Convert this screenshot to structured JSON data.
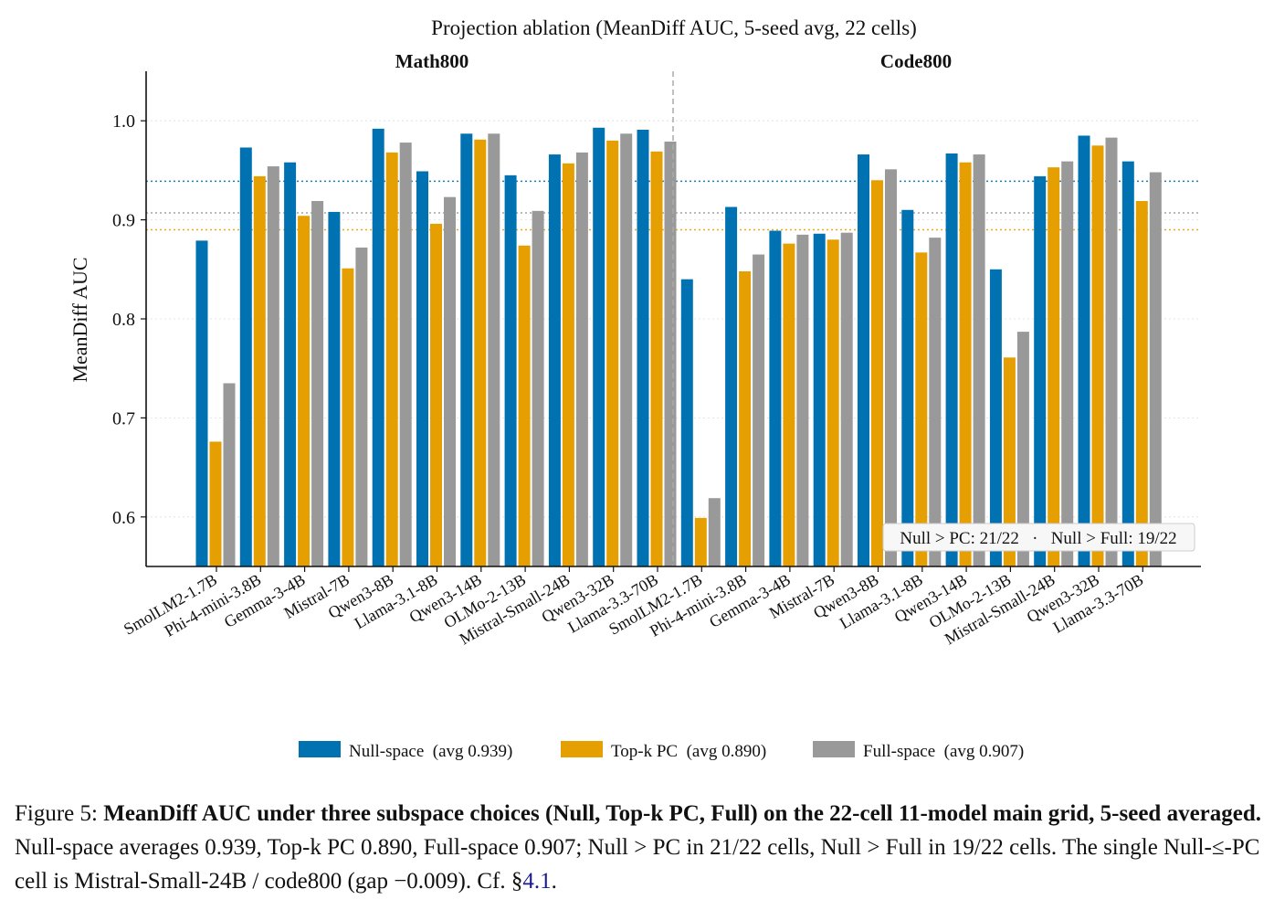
{
  "chart_data": {
    "type": "bar",
    "title": "Projection ablation (MeanDiff AUC, 5-seed avg, 22 cells)",
    "panels": [
      "Math800",
      "Code800"
    ],
    "ylabel": "MeanDiff AUC",
    "ylim": [
      0.55,
      1.05
    ],
    "yticks": [
      "0.6",
      "0.7",
      "0.8",
      "0.9",
      "1.0"
    ],
    "grid": true,
    "legend_position": "bottom",
    "categories": [
      "SmolLM2-1.7B",
      "Phi-4-mini-3.8B",
      "Gemma-3-4B",
      "Mistral-7B",
      "Qwen3-8B",
      "Llama-3.1-8B",
      "Qwen3-14B",
      "OLMo-2-13B",
      "Mistral-Small-24B",
      "Qwen3-32B",
      "Llama-3.3-70B",
      "SmolLM2-1.7B",
      "Phi-4-mini-3.8B",
      "Gemma-3-4B",
      "Mistral-7B",
      "Qwen3-8B",
      "Llama-3.1-8B",
      "Qwen3-14B",
      "OLMo-2-13B",
      "Mistral-Small-24B",
      "Qwen3-32B",
      "Llama-3.3-70B"
    ],
    "series": [
      {
        "name": "Null-space  (avg 0.939)",
        "color": "#0072b2",
        "average": 0.939,
        "values": [
          0.879,
          0.973,
          0.958,
          0.908,
          0.992,
          0.949,
          0.987,
          0.945,
          0.966,
          0.993,
          0.991,
          0.84,
          0.913,
          0.889,
          0.886,
          0.966,
          0.91,
          0.967,
          0.85,
          0.944,
          0.985,
          0.959
        ]
      },
      {
        "name": "Top-k PC  (avg 0.890)",
        "color": "#e69f00",
        "average": 0.89,
        "values": [
          0.676,
          0.944,
          0.904,
          0.851,
          0.968,
          0.896,
          0.981,
          0.874,
          0.957,
          0.98,
          0.969,
          0.599,
          0.848,
          0.876,
          0.88,
          0.94,
          0.867,
          0.958,
          0.761,
          0.953,
          0.975,
          0.919
        ]
      },
      {
        "name": "Full-space  (avg 0.907)",
        "color": "#999999",
        "average": 0.907,
        "values": [
          0.735,
          0.954,
          0.919,
          0.872,
          0.978,
          0.923,
          0.987,
          0.909,
          0.968,
          0.987,
          0.979,
          0.619,
          0.865,
          0.885,
          0.887,
          0.951,
          0.882,
          0.966,
          0.787,
          0.959,
          0.983,
          0.948
        ]
      }
    ],
    "annotation": "Null > PC: 21/22   ·   Null > Full: 19/22"
  },
  "caption": {
    "prefix": "Figure 5: ",
    "bold": "MeanDiff AUC under three subspace choices (Null, Top-k PC, Full) on the 22-cell 11-model main grid, 5-seed averaged.",
    "body": " Null-space averages 0.939, Top-k PC 0.890, Full-space 0.907; Null > PC in 21/22 cells, Null > Full in 19/22 cells. The single Null-≤-PC cell is Mistral-Small-24B / code800 (gap −0.009). Cf. §",
    "ref": "4.1",
    "suffix": "."
  }
}
